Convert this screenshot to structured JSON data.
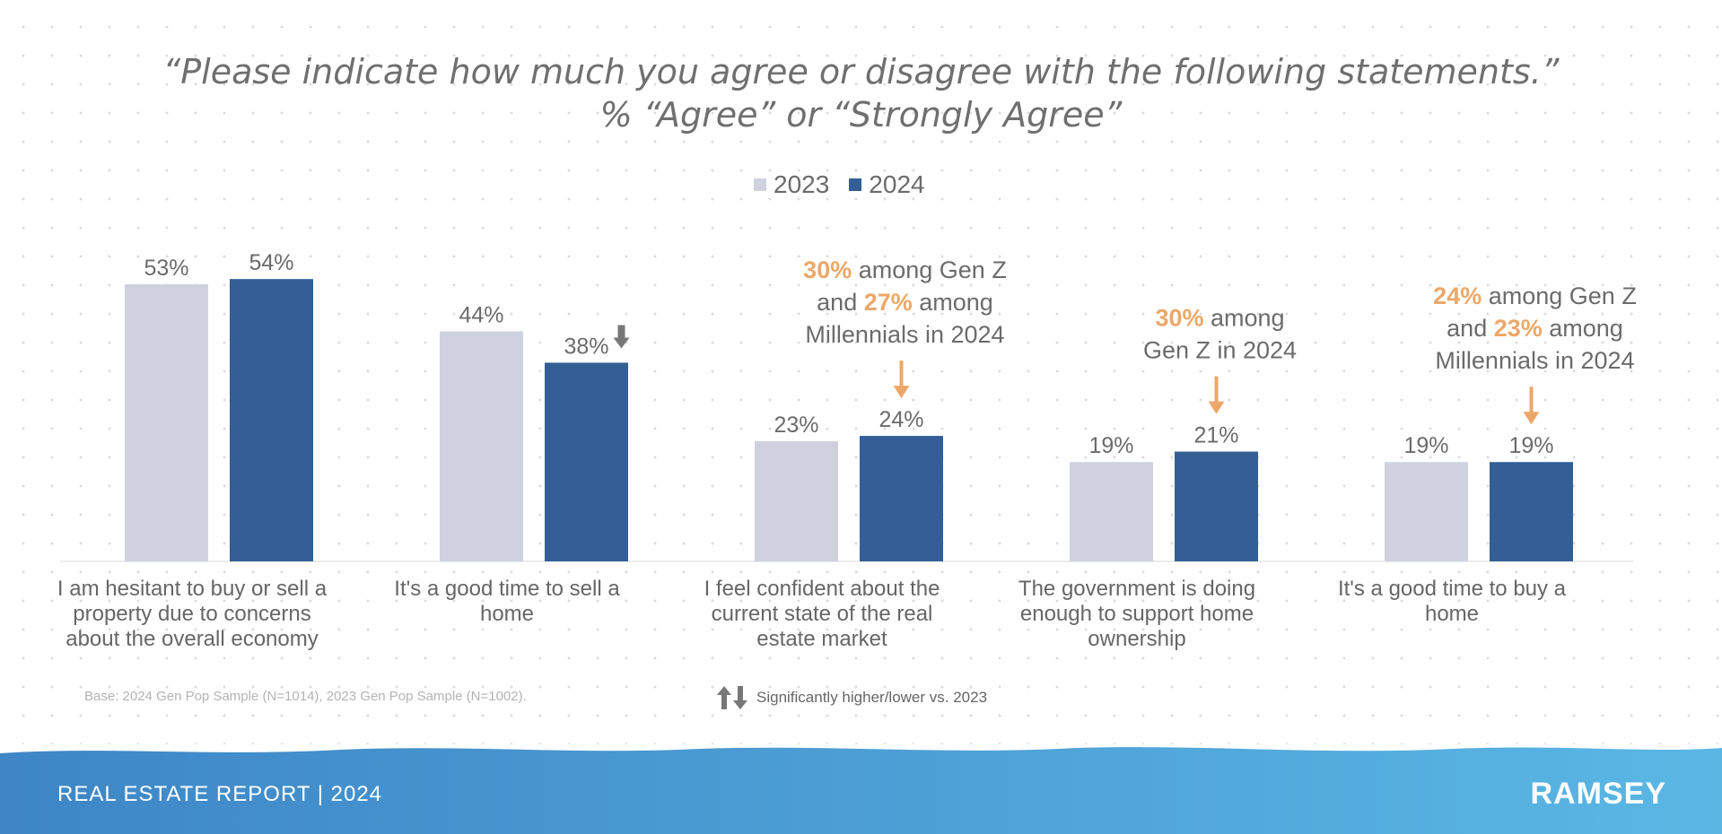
{
  "title": {
    "line1": "“Please indicate how much you agree or disagree with the following statements.”",
    "line2": "% “Agree” or “Strongly Agree”"
  },
  "legend": [
    {
      "label": "2023",
      "color": "#cfd2de"
    },
    {
      "label": "2024",
      "color": "#335f96"
    }
  ],
  "chart_data": {
    "type": "bar",
    "categories": [
      "I am hesitant to buy or sell a property due to concerns about the overall economy",
      "It's a good time to sell a home",
      "I feel confident about the current state of the real estate market",
      "The government is doing enough to support home ownership",
      "It's a good time to buy a home"
    ],
    "category_lines": [
      [
        "I am hesitant to buy or sell a",
        "property due to concerns",
        "about the overall economy"
      ],
      [
        "It's a good time to sell a",
        "home"
      ],
      [
        "I feel confident about the",
        "current state of the real",
        "estate market"
      ],
      [
        "The government is doing",
        "enough to support home",
        "ownership"
      ],
      [
        "It's a good time to buy a",
        "home"
      ]
    ],
    "series": [
      {
        "name": "2023",
        "values": [
          53,
          44,
          23,
          19,
          19
        ],
        "labels": [
          "53%",
          "44%",
          "23%",
          "19%",
          "19%"
        ],
        "color": "#cfd2de"
      },
      {
        "name": "2024",
        "values": [
          54,
          38,
          24,
          21,
          19
        ],
        "labels": [
          "54%",
          "38%",
          "24%",
          "21%",
          "19%"
        ],
        "color": "#335f96"
      }
    ],
    "significance": [
      {
        "category_index": 1,
        "series": "2024",
        "direction": "lower"
      }
    ],
    "ylim": [
      0,
      60
    ],
    "grid": false,
    "legend_position": "top-center",
    "annotations": [
      {
        "category_index": 2,
        "lines": [
          [
            {
              "t": "30%",
              "hl": true
            },
            {
              "t": " among Gen Z",
              "hl": false
            }
          ],
          [
            {
              "t": "and ",
              "hl": false
            },
            {
              "t": "27%",
              "hl": true
            },
            {
              "t": " among",
              "hl": false
            }
          ],
          [
            {
              "t": "Millennials in 2024",
              "hl": false
            }
          ]
        ]
      },
      {
        "category_index": 3,
        "lines": [
          [
            {
              "t": "30%",
              "hl": true
            },
            {
              "t": " among",
              "hl": false
            }
          ],
          [
            {
              "t": "Gen Z in 2024",
              "hl": false
            }
          ]
        ]
      },
      {
        "category_index": 4,
        "lines": [
          [
            {
              "t": "24%",
              "hl": true
            },
            {
              "t": " among Gen Z",
              "hl": false
            }
          ],
          [
            {
              "t": "and ",
              "hl": false
            },
            {
              "t": "23%",
              "hl": true
            },
            {
              "t": " among",
              "hl": false
            }
          ],
          [
            {
              "t": "Millennials in 2024",
              "hl": false
            }
          ]
        ]
      }
    ],
    "accent_color": "#eca868"
  },
  "footnote": "Base: 2024 Gen Pop Sample (N=1014), 2023 Gen Pop Sample (N=1002).",
  "significance_note": "Significantly higher/lower vs. 2023",
  "footer": {
    "title": "REAL ESTATE REPORT | 2024",
    "logo": "RAMSEY"
  },
  "icons": {
    "significance": "up-down-arrow-icon",
    "sig_lower": "down-arrow-icon",
    "callout": "down-arrow-icon"
  }
}
